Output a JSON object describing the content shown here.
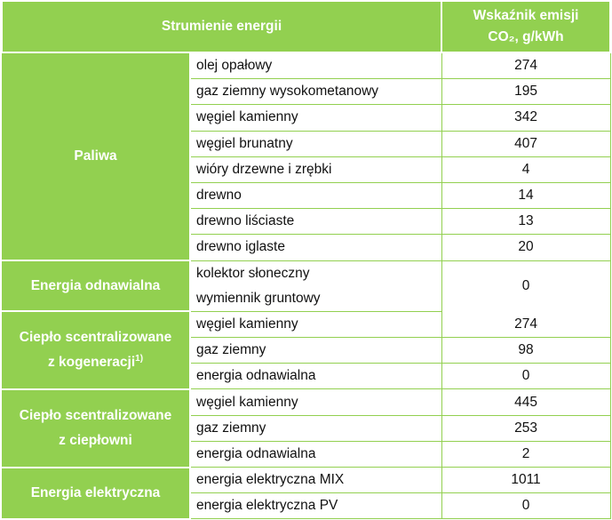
{
  "header": {
    "col1": "Strumienie energii",
    "col2_line1": "Wskaźnik emisji",
    "col2_line2": "CO₂, g/kWh"
  },
  "groups": [
    {
      "label": "Paliwa",
      "rows": [
        {
          "name": "olej opałowy",
          "value": "274"
        },
        {
          "name": "gaz ziemny wysokometanowy",
          "value": "195"
        },
        {
          "name": "węgiel kamienny",
          "value": "342"
        },
        {
          "name": "węgiel brunatny",
          "value": "407"
        },
        {
          "name": "wióry drzewne i zrębki",
          "value": "4"
        },
        {
          "name": "drewno",
          "value": "14"
        },
        {
          "name": "drewno liściaste",
          "value": "13"
        },
        {
          "name": "drewno iglaste",
          "value": "20"
        }
      ]
    },
    {
      "label": "Energia odnawialna",
      "names": [
        "kolektor słoneczny",
        "wymiennik gruntowy"
      ],
      "value": "0"
    },
    {
      "label_line1": "Ciepło scentralizowane",
      "label_line2": "z kogeneracji",
      "footnote": "1)",
      "rows": [
        {
          "name": "węgiel kamienny",
          "value": "274"
        },
        {
          "name": "gaz ziemny",
          "value": "98"
        },
        {
          "name": "energia odnawialna",
          "value": "0"
        }
      ]
    },
    {
      "label_line1": "Ciepło scentralizowane",
      "label_line2": "z ciepłowni",
      "rows": [
        {
          "name": "węgiel kamienny",
          "value": "445"
        },
        {
          "name": "gaz ziemny",
          "value": "253"
        },
        {
          "name": "energia odnawialna",
          "value": "2"
        }
      ]
    },
    {
      "label": "Energia elektryczna",
      "rows": [
        {
          "name": "energia elektryczna MIX",
          "value": "1011"
        },
        {
          "name": "energia elektryczna PV",
          "value": "0"
        }
      ]
    }
  ],
  "colors": {
    "header_bg": "#92d050",
    "group_bg": "#92d050",
    "header_text": "#ffffff",
    "border": "#92d050"
  }
}
